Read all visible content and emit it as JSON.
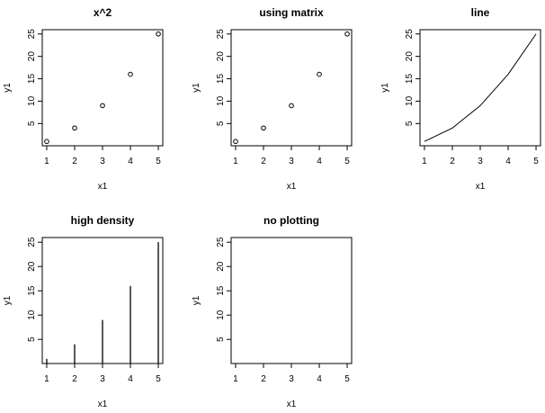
{
  "chart_data": [
    {
      "type": "scatter",
      "title": "x^2",
      "xlabel": "x1",
      "ylabel": "y1",
      "x": [
        1,
        2,
        3,
        4,
        5
      ],
      "y": [
        1,
        4,
        9,
        16,
        25
      ],
      "xticks": [
        1,
        2,
        3,
        4,
        5
      ],
      "yticks": [
        5,
        10,
        15,
        20,
        25
      ],
      "xlim": [
        1,
        5
      ],
      "ylim": [
        1,
        25
      ],
      "grid": false,
      "marker": "open-circle"
    },
    {
      "type": "scatter",
      "title": "using matrix",
      "xlabel": "x1",
      "ylabel": "y1",
      "x": [
        1,
        2,
        3,
        4,
        5
      ],
      "y": [
        1,
        4,
        9,
        16,
        25
      ],
      "xticks": [
        1,
        2,
        3,
        4,
        5
      ],
      "yticks": [
        5,
        10,
        15,
        20,
        25
      ],
      "xlim": [
        1,
        5
      ],
      "ylim": [
        1,
        25
      ],
      "grid": false,
      "marker": "open-circle"
    },
    {
      "type": "line",
      "title": "line",
      "xlabel": "x1",
      "ylabel": "y1",
      "x": [
        1,
        2,
        3,
        4,
        5
      ],
      "y": [
        1,
        4,
        9,
        16,
        25
      ],
      "xticks": [
        1,
        2,
        3,
        4,
        5
      ],
      "yticks": [
        5,
        10,
        15,
        20,
        25
      ],
      "xlim": [
        1,
        5
      ],
      "ylim": [
        1,
        25
      ],
      "grid": false
    },
    {
      "type": "bar",
      "style": "high-density vertical lines",
      "title": "high density",
      "xlabel": "x1",
      "ylabel": "y1",
      "x": [
        1,
        2,
        3,
        4,
        5
      ],
      "y": [
        1,
        4,
        9,
        16,
        25
      ],
      "xticks": [
        1,
        2,
        3,
        4,
        5
      ],
      "yticks": [
        5,
        10,
        15,
        20,
        25
      ],
      "xlim": [
        1,
        5
      ],
      "ylim": [
        1,
        25
      ],
      "grid": false
    },
    {
      "type": "scatter",
      "style": "empty (no points drawn)",
      "title": "no plotting",
      "xlabel": "x1",
      "ylabel": "y1",
      "x": [],
      "y": [],
      "xticks": [
        1,
        2,
        3,
        4,
        5
      ],
      "yticks": [
        5,
        10,
        15,
        20,
        25
      ],
      "xlim": [
        1,
        5
      ],
      "ylim": [
        1,
        25
      ],
      "grid": false
    }
  ]
}
